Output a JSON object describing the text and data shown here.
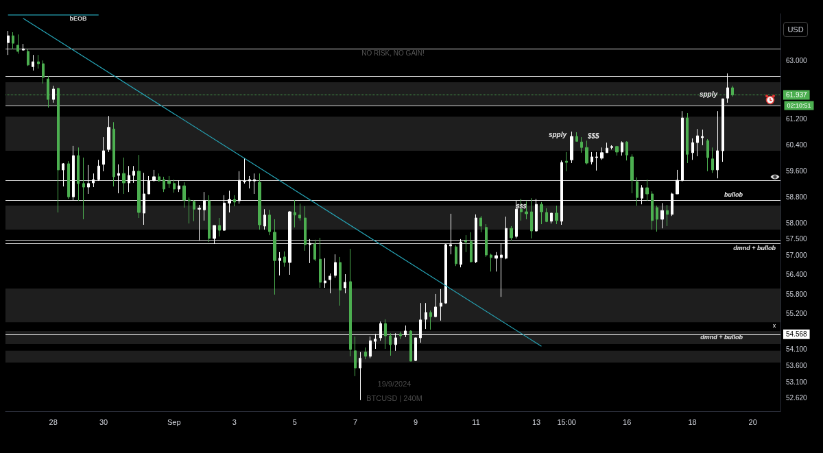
{
  "chart_data": {
    "type": "candlestick",
    "ylabel": "USD",
    "categories": [
      null,
      null,
      null,
      null,
      null,
      null,
      null,
      null,
      null,
      "28",
      null,
      null,
      null,
      null,
      null,
      null,
      null,
      null,
      null,
      "30",
      null,
      null,
      null,
      null,
      null,
      null,
      null,
      null,
      null,
      null,
      null,
      null,
      null,
      "Sep",
      null,
      null,
      null,
      null,
      null,
      null,
      null,
      null,
      null,
      null,
      null,
      "3",
      null,
      null,
      null,
      null,
      null,
      null,
      null,
      null,
      null,
      null,
      null,
      "5",
      null,
      null,
      null,
      null,
      null,
      null,
      null,
      null,
      null,
      null,
      null,
      "7",
      null,
      null,
      null,
      null,
      null,
      null,
      null,
      null,
      null,
      null,
      null,
      "9",
      null,
      null,
      null,
      null,
      null,
      null,
      null,
      null,
      null,
      null,
      null,
      "11",
      null,
      null,
      null,
      null,
      null,
      null,
      null,
      null,
      null,
      null,
      null,
      "13",
      null,
      null,
      null,
      null,
      null,
      "15:00",
      null,
      null,
      null,
      null,
      null,
      null,
      null,
      null,
      null,
      null,
      null,
      "16",
      null,
      null,
      null,
      null,
      null,
      null,
      null,
      null,
      null,
      null,
      null,
      null,
      "18",
      null,
      null,
      null,
      null,
      null,
      null,
      null,
      null,
      null,
      null,
      null,
      "20",
      null,
      null,
      null,
      null,
      null
    ],
    "ohlc": [
      [
        63550,
        63910,
        63170,
        63760
      ],
      [
        63760,
        63870,
        63340,
        63530
      ],
      [
        63470,
        63800,
        63210,
        63280
      ],
      [
        63320,
        63510,
        63300,
        63360
      ],
      [
        63280,
        63340,
        62830,
        62860
      ],
      [
        62810,
        63170,
        62690,
        62960
      ],
      [
        62960,
        63170,
        62750,
        62900
      ],
      [
        62900,
        63000,
        62290,
        62480
      ],
      [
        62430,
        62520,
        61550,
        61800
      ],
      [
        61800,
        62220,
        61700,
        62120
      ],
      [
        62140,
        62160,
        58320,
        59630
      ],
      [
        59630,
        59840,
        59120,
        59820
      ],
      [
        59820,
        59900,
        58740,
        58800
      ],
      [
        58800,
        60370,
        58700,
        60070
      ],
      [
        60070,
        60320,
        58680,
        59210
      ],
      [
        59210,
        60010,
        58110,
        59100
      ],
      [
        59100,
        59780,
        58890,
        59210
      ],
      [
        59230,
        59520,
        59100,
        59330
      ],
      [
        59330,
        59940,
        59290,
        59750
      ],
      [
        59800,
        60640,
        59590,
        60220
      ],
      [
        60260,
        61290,
        60180,
        60940
      ],
      [
        60890,
        61100,
        59120,
        59420
      ],
      [
        59460,
        59800,
        58910,
        59520
      ],
      [
        59520,
        60010,
        58890,
        59230
      ],
      [
        59230,
        59750,
        58950,
        59460
      ],
      [
        59460,
        59750,
        59230,
        59590
      ],
      [
        59590,
        60090,
        58150,
        58320
      ],
      [
        58300,
        59540,
        57940,
        58890
      ],
      [
        58890,
        59440,
        58890,
        59290
      ],
      [
        59310,
        59630,
        59270,
        59420
      ],
      [
        59420,
        59520,
        59270,
        59290
      ],
      [
        59330,
        59420,
        58950,
        59040
      ],
      [
        59290,
        59440,
        59080,
        59210
      ],
      [
        59210,
        59330,
        58930,
        59040
      ],
      [
        59040,
        59310,
        58950,
        59140
      ],
      [
        59140,
        59250,
        58470,
        58700
      ],
      [
        58700,
        58780,
        57980,
        58680
      ],
      [
        58660,
        58700,
        58050,
        58420
      ],
      [
        58420,
        58550,
        57450,
        58450
      ],
      [
        58400,
        58950,
        58070,
        58680
      ],
      [
        58680,
        58850,
        57410,
        57520
      ],
      [
        57520,
        57920,
        57350,
        57920
      ],
      [
        57920,
        58150,
        57580,
        57770
      ],
      [
        57770,
        58850,
        57750,
        58610
      ],
      [
        58610,
        58990,
        58320,
        58720
      ],
      [
        58720,
        58850,
        58510,
        58640
      ],
      [
        58680,
        59590,
        58590,
        59310
      ],
      [
        59270,
        59990,
        59210,
        59290
      ],
      [
        59290,
        59440,
        59060,
        59330
      ],
      [
        59290,
        59520,
        58890,
        59330
      ],
      [
        59250,
        59520,
        57790,
        57940
      ],
      [
        57900,
        58420,
        57790,
        58240
      ],
      [
        58240,
        58400,
        57620,
        57730
      ],
      [
        57710,
        58110,
        55790,
        56840
      ],
      [
        56840,
        57100,
        56380,
        56910
      ],
      [
        56950,
        57120,
        56650,
        56780
      ],
      [
        56780,
        58360,
        56400,
        58340
      ],
      [
        58320,
        58700,
        57860,
        58240
      ],
      [
        58240,
        58590,
        58070,
        58150
      ],
      [
        58150,
        58510,
        57140,
        57330
      ],
      [
        57330,
        57500,
        56760,
        57370
      ],
      [
        57350,
        57480,
        56820,
        56880
      ],
      [
        56880,
        57540,
        56000,
        56170
      ],
      [
        56150,
        56910,
        56000,
        56210
      ],
      [
        56250,
        56440,
        55830,
        56360
      ],
      [
        56380,
        57030,
        56310,
        56780
      ],
      [
        56780,
        56950,
        55450,
        55930
      ],
      [
        56000,
        56420,
        55830,
        56170
      ],
      [
        56190,
        57200,
        53890,
        54100
      ],
      [
        54060,
        54500,
        53280,
        53530
      ],
      [
        53530,
        54020,
        52540,
        53830
      ],
      [
        54020,
        54160,
        53800,
        53890
      ],
      [
        53890,
        54500,
        53830,
        54370
      ],
      [
        54350,
        54580,
        54120,
        54420
      ],
      [
        54460,
        54960,
        54370,
        54900
      ],
      [
        54900,
        55030,
        54120,
        54520
      ],
      [
        54520,
        54600,
        53910,
        54250
      ],
      [
        54250,
        54600,
        54060,
        54460
      ],
      [
        54580,
        54650,
        54420,
        54520
      ],
      [
        54560,
        54840,
        54480,
        54670
      ],
      [
        54670,
        54690,
        53740,
        53740
      ],
      [
        53760,
        54460,
        53740,
        54460
      ],
      [
        54460,
        55530,
        54310,
        55010
      ],
      [
        55030,
        55530,
        54730,
        55240
      ],
      [
        55240,
        55300,
        54710,
        55110
      ],
      [
        55110,
        55810,
        55090,
        55410
      ],
      [
        55430,
        55960,
        54990,
        55530
      ],
      [
        55530,
        57350,
        55510,
        57330
      ],
      [
        57290,
        58280,
        57030,
        57330
      ],
      [
        57260,
        57310,
        56670,
        56740
      ],
      [
        56720,
        57500,
        56630,
        57410
      ],
      [
        57450,
        57620,
        57100,
        57410
      ],
      [
        57430,
        57710,
        56780,
        56800
      ],
      [
        56800,
        58260,
        56760,
        58150
      ],
      [
        58150,
        58210,
        57710,
        57900
      ],
      [
        57860,
        57960,
        56950,
        57010
      ],
      [
        57010,
        57050,
        56500,
        56930
      ],
      [
        56910,
        57100,
        56500,
        56990
      ],
      [
        56930,
        57370,
        55720,
        57010
      ],
      [
        56910,
        58190,
        56880,
        57830
      ],
      [
        57830,
        57900,
        57450,
        57540
      ],
      [
        57580,
        58680,
        57520,
        58420
      ],
      [
        58420,
        58740,
        58070,
        58340
      ],
      [
        58340,
        58660,
        58110,
        58280
      ],
      [
        58340,
        58760,
        57520,
        57750
      ],
      [
        57750,
        58740,
        57730,
        58570
      ],
      [
        58570,
        58640,
        57960,
        58340
      ],
      [
        58320,
        58450,
        58020,
        58040
      ],
      [
        58050,
        58300,
        57980,
        58300
      ],
      [
        58300,
        58530,
        57960,
        58070
      ],
      [
        58050,
        59920,
        57940,
        59860
      ],
      [
        59900,
        60180,
        59590,
        59860
      ],
      [
        59940,
        60810,
        59840,
        60660
      ],
      [
        60660,
        60790,
        60510,
        60510
      ],
      [
        60490,
        60640,
        60160,
        60320
      ],
      [
        60320,
        60530,
        59800,
        59840
      ],
      [
        59880,
        60180,
        59800,
        60030
      ],
      [
        60010,
        60180,
        59610,
        60030
      ],
      [
        59990,
        60320,
        59940,
        60160
      ],
      [
        60160,
        60470,
        60160,
        60300
      ],
      [
        60320,
        60390,
        60260,
        60350
      ],
      [
        60350,
        60370,
        60070,
        60180
      ],
      [
        60180,
        60510,
        60070,
        60470
      ],
      [
        60490,
        60510,
        59920,
        60090
      ],
      [
        60030,
        60110,
        58910,
        59310
      ],
      [
        59270,
        59400,
        58530,
        58780
      ],
      [
        58760,
        59160,
        58570,
        59080
      ],
      [
        59080,
        59330,
        58680,
        58890
      ],
      [
        58890,
        58970,
        57790,
        58070
      ],
      [
        58470,
        58530,
        57730,
        58110
      ],
      [
        58110,
        58610,
        57830,
        58380
      ],
      [
        58380,
        58550,
        57900,
        58260
      ],
      [
        58260,
        58930,
        58210,
        58890
      ],
      [
        58890,
        59630,
        58890,
        59310
      ],
      [
        59310,
        61440,
        59270,
        61230
      ],
      [
        61230,
        61380,
        59840,
        60110
      ],
      [
        60160,
        60600,
        59940,
        60470
      ],
      [
        60470,
        60890,
        60050,
        60680
      ],
      [
        60620,
        60870,
        60390,
        60660
      ],
      [
        60530,
        60580,
        59590,
        60010
      ],
      [
        59970,
        60320,
        59540,
        59630
      ],
      [
        59630,
        61440,
        59370,
        60220
      ],
      [
        60220,
        61820,
        59880,
        61820
      ],
      [
        61840,
        62600,
        61700,
        62160
      ],
      [
        62160,
        62220,
        61890,
        61937
      ],
      null,
      null,
      null,
      null,
      null,
      null,
      null,
      null,
      null
    ],
    "colors": [
      "#ffffff",
      "#4caf50",
      "#4caf50",
      "#ffffff",
      "#4caf50",
      "#ffffff",
      "#4caf50",
      "#4caf50",
      "#4caf50",
      "#ffffff",
      "#4caf50",
      "#ffffff",
      "#4caf50",
      "#ffffff",
      "#4caf50",
      "#4caf50",
      "#ffffff",
      "#ffffff",
      "#ffffff",
      "#ffffff",
      "#ffffff",
      "#4caf50",
      "#ffffff",
      "#4caf50",
      "#ffffff",
      "#ffffff",
      "#4caf50",
      "#ffffff",
      "#ffffff",
      "#ffffff",
      "#4caf50",
      "#4caf50",
      "#4caf50",
      "#4caf50",
      "#ffffff",
      "#4caf50",
      "#4caf50",
      "#4caf50",
      "#ffffff",
      "#ffffff",
      "#4caf50",
      "#ffffff",
      "#4caf50",
      "#ffffff",
      "#ffffff",
      "#4caf50",
      "#ffffff",
      "#ffffff",
      "#ffffff",
      "#ffffff",
      "#4caf50",
      "#ffffff",
      "#4caf50",
      "#4caf50",
      "#ffffff",
      "#4caf50",
      "#ffffff",
      "#4caf50",
      "#4caf50",
      "#4caf50",
      "#ffffff",
      "#4caf50",
      "#4caf50",
      "#ffffff",
      "#ffffff",
      "#ffffff",
      "#4caf50",
      "#ffffff",
      "#4caf50",
      "#4caf50",
      "#ffffff",
      "#4caf50",
      "#ffffff",
      "#ffffff",
      "#ffffff",
      "#4caf50",
      "#4caf50",
      "#ffffff",
      "#4caf50",
      "#ffffff",
      "#4caf50",
      "#ffffff",
      "#ffffff",
      "#ffffff",
      "#4caf50",
      "#ffffff",
      "#ffffff",
      "#ffffff",
      "#ffffff",
      "#4caf50",
      "#ffffff",
      "#4caf50",
      "#4caf50",
      "#ffffff",
      "#4caf50",
      "#4caf50",
      "#4caf50",
      "#ffffff",
      "#ffffff",
      "#ffffff",
      "#4caf50",
      "#ffffff",
      "#4caf50",
      "#4caf50",
      "#4caf50",
      "#ffffff",
      "#4caf50",
      "#4caf50",
      "#ffffff",
      "#4caf50",
      "#ffffff",
      "#4caf50",
      "#ffffff",
      "#4caf50",
      "#4caf50",
      "#4caf50",
      "#ffffff",
      "#ffffff",
      "#ffffff",
      "#ffffff",
      "#ffffff",
      "#4caf50",
      "#ffffff",
      "#4caf50",
      "#4caf50",
      "#4caf50",
      "#ffffff",
      "#4caf50",
      "#4caf50",
      "#4caf50",
      "#ffffff",
      "#4caf50",
      "#ffffff",
      "#ffffff",
      "#ffffff",
      "#4caf50",
      "#ffffff",
      "#ffffff",
      "#ffffff",
      "#4caf50",
      "#4caf50",
      "#ffffff",
      "#ffffff",
      "#ffffff",
      "#4caf50",
      null,
      null,
      null,
      null,
      null,
      null,
      null,
      null,
      null
    ],
    "series": [
      {
        "type": "line",
        "color": "#26a6b8",
        "values": [
          null,
          null,
          null,
          64300,
          null,
          null,
          null,
          null,
          null,
          null,
          null,
          null,
          null,
          null,
          null,
          null,
          null,
          null,
          null,
          null,
          null,
          null,
          null,
          null,
          null,
          null,
          null,
          null,
          null,
          null,
          null,
          null,
          null,
          null,
          null,
          null,
          null,
          null,
          null,
          null,
          null,
          null,
          null,
          null,
          null,
          null,
          null,
          null,
          null,
          null,
          null,
          null,
          null,
          null,
          null,
          null,
          null,
          null,
          null,
          null,
          null,
          null,
          null,
          null,
          null,
          null,
          null,
          null,
          null,
          null,
          null,
          null,
          null,
          null,
          null,
          null,
          null,
          null,
          null,
          null,
          null,
          null,
          null,
          null,
          null,
          null,
          null,
          null,
          null,
          null,
          null,
          null,
          null,
          null,
          null,
          null,
          null,
          null,
          null,
          null,
          null,
          null,
          null,
          null,
          null,
          null,
          54200,
          null,
          null,
          null,
          null,
          null,
          null,
          null,
          null,
          null,
          null,
          null,
          null,
          null,
          null,
          null,
          null,
          null,
          null,
          null,
          null,
          null,
          null,
          null,
          null,
          null,
          null,
          null,
          null,
          null,
          null,
          null,
          null,
          null,
          null,
          null,
          null,
          null,
          null,
          null,
          null,
          null,
          null,
          null,
          null,
          null,
          null,
          null
        ]
      },
      {
        "type": "line",
        "color": "#26a6b8",
        "values": [
          64400,
          null,
          null,
          null,
          null,
          null,
          null,
          null,
          null,
          null,
          null,
          null,
          null,
          null,
          null,
          null,
          null,
          null,
          64400,
          null,
          null,
          null,
          null,
          null,
          null,
          null,
          null,
          null,
          null,
          null,
          null,
          null,
          null,
          null,
          null,
          null,
          null,
          null,
          null,
          null,
          null,
          null,
          null,
          null,
          null,
          null,
          null,
          null,
          null,
          null,
          null,
          null,
          null,
          null,
          null,
          null,
          null,
          null,
          null,
          null,
          null,
          null,
          null,
          null,
          null,
          null,
          null,
          null,
          null,
          null,
          null,
          null,
          null,
          null,
          null,
          null,
          null,
          null,
          null,
          null,
          null,
          null,
          null,
          null,
          null,
          null,
          null,
          null,
          null,
          null,
          null,
          null,
          null,
          null,
          null,
          null,
          null,
          null,
          null,
          null,
          null,
          null,
          null,
          null,
          null,
          null,
          null,
          null,
          null,
          null,
          null,
          null,
          null,
          null,
          null,
          null,
          null,
          null,
          null,
          null,
          null,
          null,
          null,
          null,
          null,
          null,
          null,
          null,
          null,
          null,
          null,
          null,
          null,
          null,
          null,
          null,
          null,
          null,
          null,
          null,
          null,
          null,
          null,
          null,
          null,
          null,
          null,
          null,
          null,
          null,
          null,
          null,
          null,
          null
        ]
      }
    ],
    "ylim": [
      52200,
      64440
    ],
    "yticks": [
      {
        "value": 63000,
        "label": "63.000"
      },
      {
        "value": 61200,
        "label": "61.200"
      },
      {
        "value": 60400,
        "label": "60.400"
      },
      {
        "value": 59600,
        "label": "59.600"
      },
      {
        "value": 58800,
        "label": "58.800"
      },
      {
        "value": 58000,
        "label": "58.000"
      },
      {
        "value": 57500,
        "label": "57.500"
      },
      {
        "value": 57000,
        "label": "57.000"
      },
      {
        "value": 56400,
        "label": "56.400"
      },
      {
        "value": 55800,
        "label": "55.800"
      },
      {
        "value": 55200,
        "label": "55.200"
      },
      {
        "value": 54100,
        "label": "54.100"
      },
      {
        "value": 53600,
        "label": "53.600"
      },
      {
        "value": 53100,
        "label": "53.100"
      },
      {
        "value": 52620,
        "label": "52.620"
      }
    ],
    "ref_lines": [
      {
        "axis": "y",
        "value": 63360,
        "color": "#d9d9d9"
      },
      {
        "axis": "y",
        "value": 62520,
        "color": "#d9d9d9"
      },
      {
        "axis": "y",
        "value": 61610,
        "color": "#d9d9d9"
      },
      {
        "axis": "y",
        "value": 59310,
        "color": "#d9d9d9"
      },
      {
        "axis": "y",
        "value": 58700,
        "color": "#d9d9d9"
      },
      {
        "axis": "y",
        "value": 57470,
        "color": "#d9d9d9"
      },
      {
        "axis": "y",
        "value": 57370,
        "color": "#d9d9d9"
      },
      {
        "axis": "y",
        "value": 54568,
        "label": "54.568",
        "color": "#ffffff"
      },
      {
        "axis": "y",
        "value": 61937,
        "label": "61.937",
        "color": "#4caf50",
        "line_style": "dotted"
      }
    ],
    "bands": [
      {
        "axis": "y",
        "from": 61610,
        "to": 62330,
        "color": "#1e1e1e"
      },
      {
        "axis": "y",
        "from": 60220,
        "to": 61270,
        "color": "#1e1e1e"
      },
      {
        "axis": "y",
        "from": 57790,
        "to": 58530,
        "color": "#1e1e1e"
      },
      {
        "axis": "y",
        "from": 54940,
        "to": 55980,
        "color": "#1e1e1e"
      },
      {
        "axis": "y",
        "from": 54270,
        "to": 54670,
        "color": "#1e1e1e"
      },
      {
        "axis": "y",
        "from": 53700,
        "to": 54060,
        "color": "#1e1e1e"
      }
    ],
    "annotations": [
      "NO RISK, NO GAIN!",
      "spply",
      "spply",
      "$$$",
      "$$$",
      "bullob",
      "dmnd + bullob",
      "dmnd + bullob",
      "x",
      "02:10:51",
      "19/9/2024",
      "BTCUSD | 240M",
      "bEOB"
    ]
  }
}
